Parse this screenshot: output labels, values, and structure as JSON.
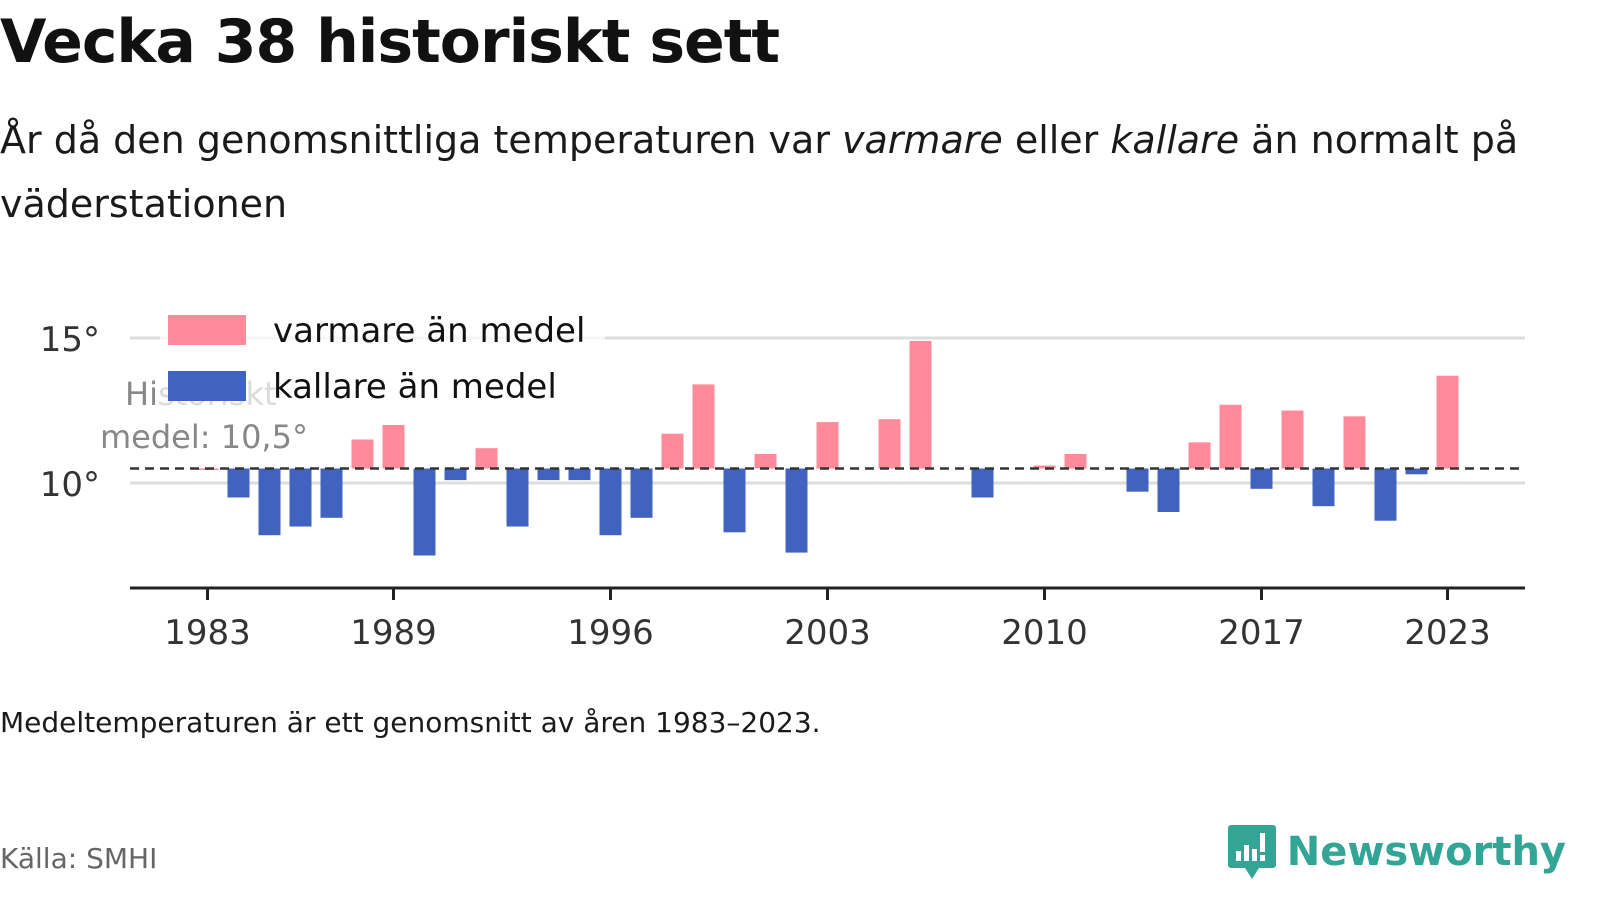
{
  "title": "Vecka 38 historiskt sett",
  "subtitle": {
    "part1": "År då den genomsnittliga temperaturen var ",
    "warm": "varmare",
    "part2": " eller ",
    "cold": "kallare",
    "part3": " än normalt på väderstationen"
  },
  "note": "Medeltemperaturen är ett genomsnitt av åren 1983–2023.",
  "source": "Källa: SMHI",
  "brand": {
    "name": "Newsworthy",
    "icon": "newsworthy-logo-icon",
    "color": "#32a596"
  },
  "colors": {
    "warm": "#ff8a99",
    "cold": "#4063c0"
  },
  "chart_data": {
    "type": "bar",
    "baseline": 10.5,
    "baseline_label": [
      "Historiskt",
      "medel: 10,5°"
    ],
    "ylim": [
      6.5,
      15.5
    ],
    "y_ticks": [
      10,
      15
    ],
    "y_tick_labels": [
      "10°",
      "15°"
    ],
    "x_ticks": [
      1983,
      1989,
      1996,
      2003,
      2010,
      2017,
      2023
    ],
    "legend": {
      "position": "top-left",
      "entries": [
        "varmare än medel",
        "kallare än medel"
      ]
    },
    "grid": true,
    "years": [
      1983,
      1984,
      1985,
      1986,
      1987,
      1988,
      1989,
      1990,
      1991,
      1992,
      1993,
      1994,
      1995,
      1996,
      1997,
      1998,
      1999,
      2000,
      2001,
      2002,
      2003,
      2004,
      2005,
      2006,
      2007,
      2008,
      2009,
      2010,
      2011,
      2012,
      2013,
      2014,
      2015,
      2016,
      2017,
      2018,
      2019,
      2020,
      2021,
      2022,
      2023
    ],
    "values": [
      10.5,
      9.5,
      8.2,
      8.5,
      8.8,
      11.5,
      12.0,
      7.5,
      10.1,
      11.2,
      8.5,
      10.1,
      10.1,
      8.2,
      8.8,
      11.7,
      13.4,
      8.3,
      11.0,
      7.6,
      12.1,
      null,
      12.2,
      14.9,
      null,
      9.5,
      null,
      10.6,
      11.0,
      null,
      9.7,
      9.0,
      11.4,
      12.7,
      9.8,
      12.5,
      9.2,
      12.3,
      8.7,
      10.3,
      13.7
    ]
  }
}
